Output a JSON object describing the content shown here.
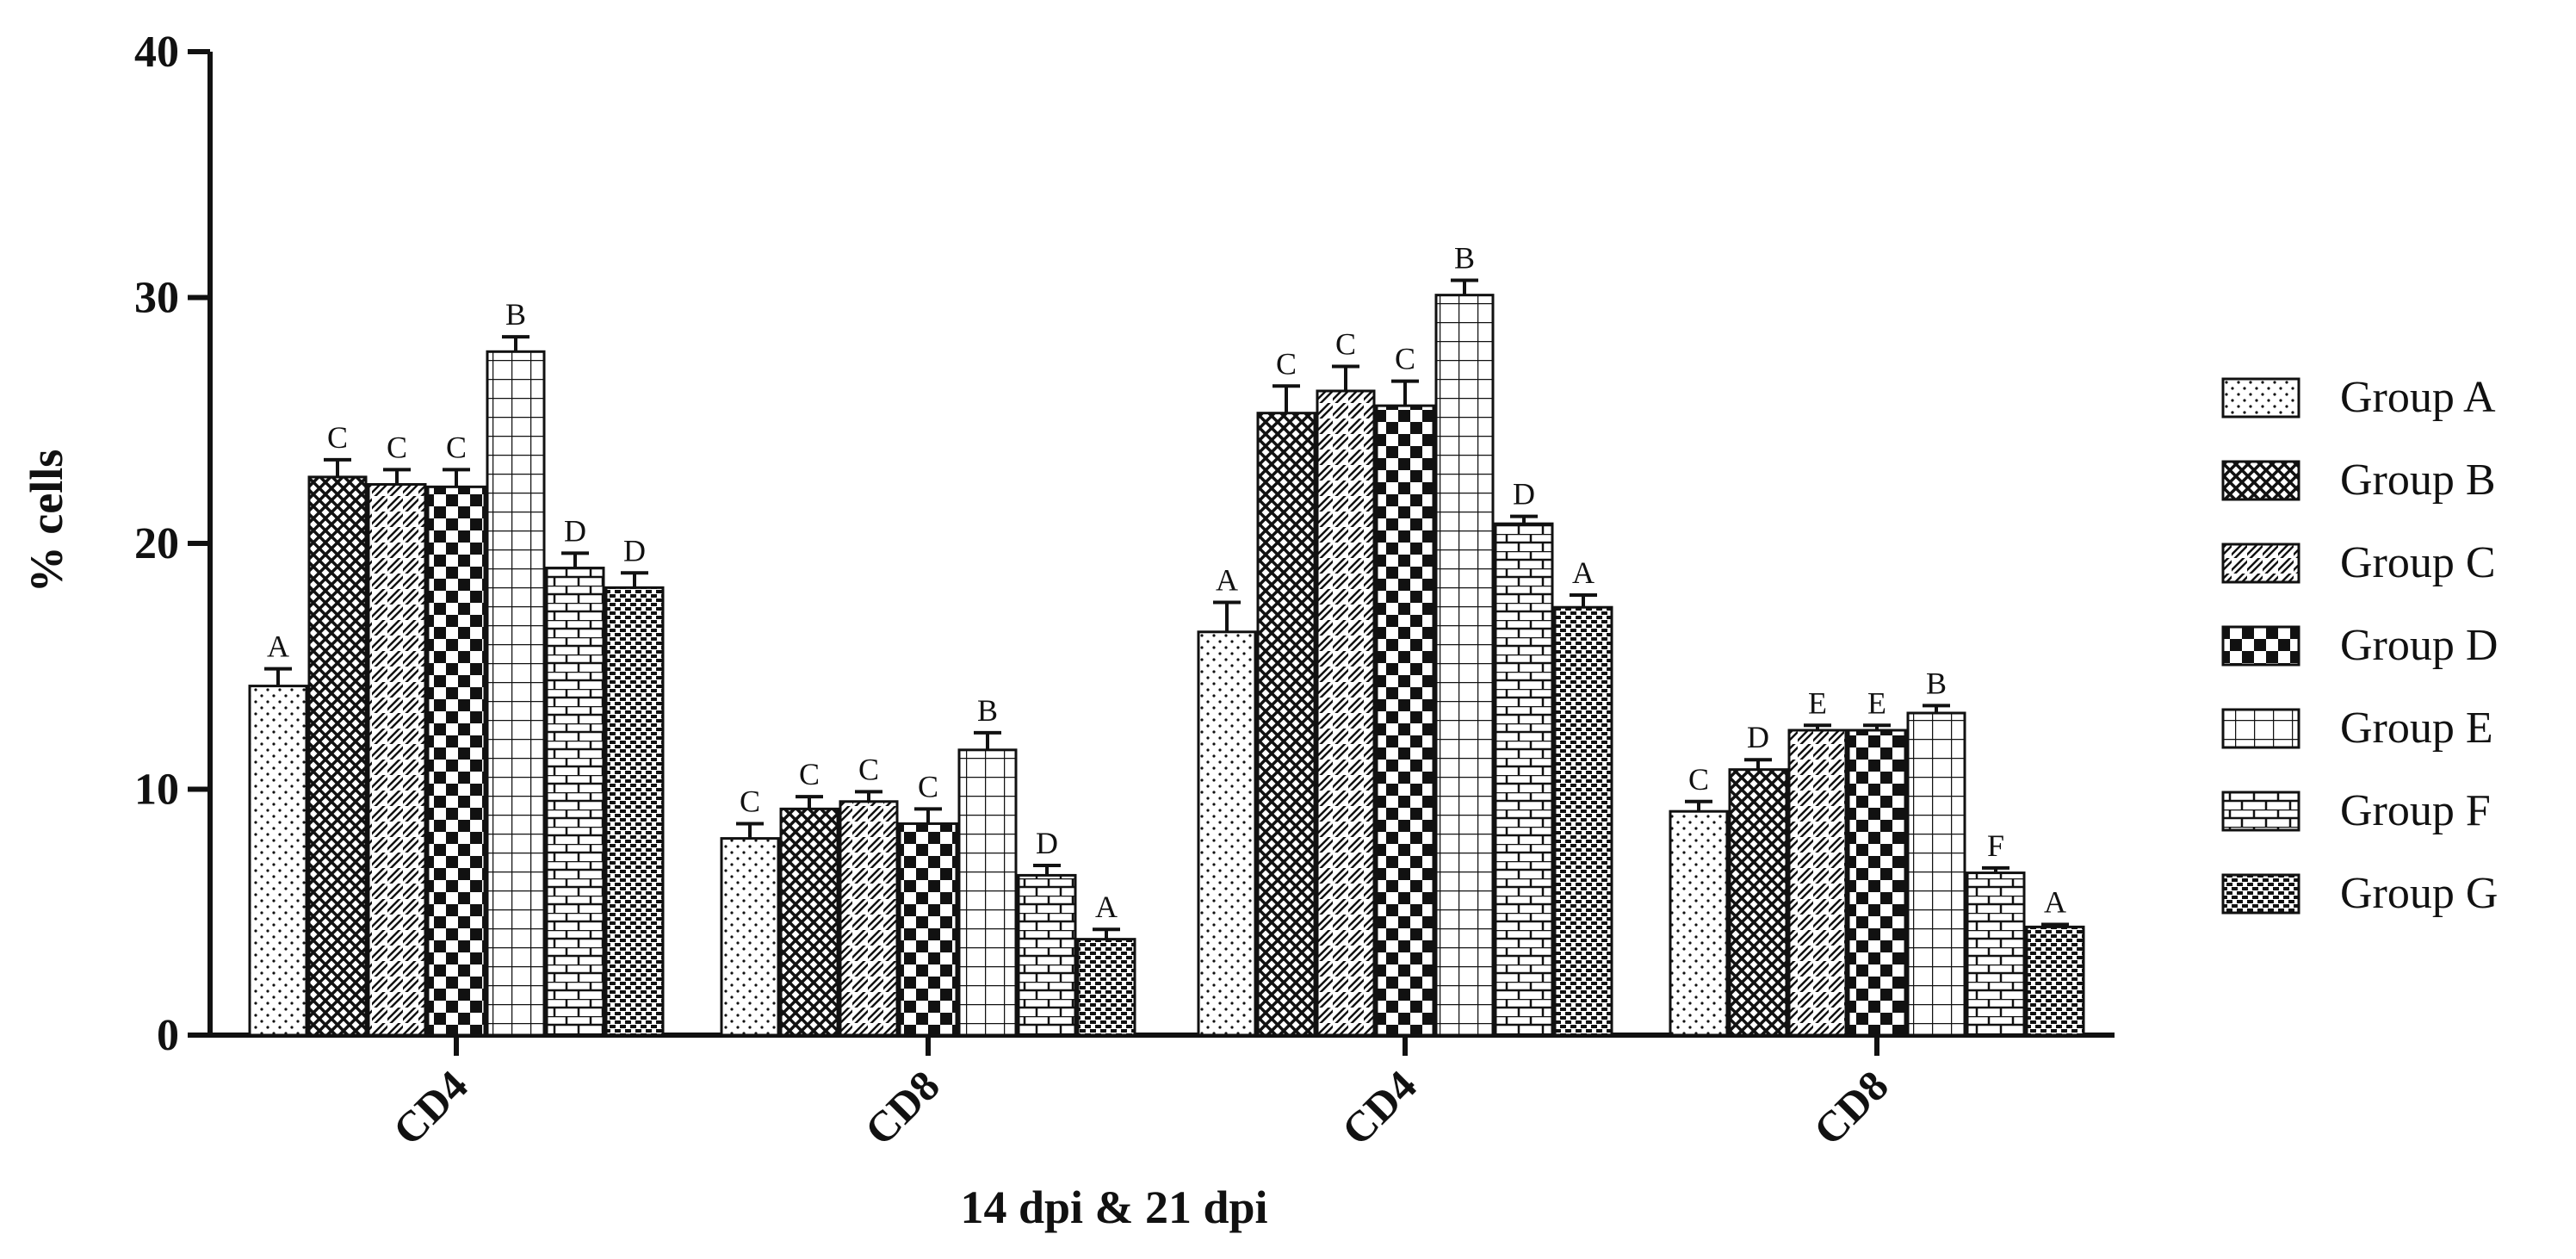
{
  "chart_data": {
    "type": "bar",
    "title": "",
    "xlabel": "14 dpi & 21 dpi",
    "ylabel": "% cells",
    "ylim": [
      0,
      40
    ],
    "yticks": [
      0,
      10,
      20,
      30,
      40
    ],
    "categories": [
      "CD4",
      "CD8",
      "CD4",
      "CD8"
    ],
    "legend_position": "right",
    "series": [
      {
        "name": "Group A",
        "pattern": "dots",
        "values": [
          14.2,
          8.0,
          16.4,
          9.1
        ],
        "errors": [
          0.7,
          0.6,
          1.2,
          0.4
        ],
        "letters": [
          "A",
          "C",
          "A",
          "C"
        ]
      },
      {
        "name": "Group B",
        "pattern": "crosshatch",
        "values": [
          22.7,
          9.2,
          25.3,
          10.8
        ],
        "errors": [
          0.7,
          0.5,
          1.1,
          0.4
        ],
        "letters": [
          "C",
          "C",
          "C",
          "D"
        ]
      },
      {
        "name": "Group C",
        "pattern": "diagonal",
        "values": [
          22.4,
          9.5,
          26.2,
          12.4
        ],
        "errors": [
          0.6,
          0.4,
          1.0,
          0.2
        ],
        "letters": [
          "C",
          "C",
          "C",
          "E"
        ]
      },
      {
        "name": "Group D",
        "pattern": "checker",
        "values": [
          22.3,
          8.6,
          25.6,
          12.4
        ],
        "errors": [
          0.7,
          0.6,
          1.0,
          0.2
        ],
        "letters": [
          "C",
          "C",
          "C",
          "E"
        ]
      },
      {
        "name": "Group E",
        "pattern": "grid",
        "values": [
          27.8,
          11.6,
          30.1,
          13.1
        ],
        "errors": [
          0.6,
          0.7,
          0.6,
          0.3
        ],
        "letters": [
          "B",
          "B",
          "B",
          "B"
        ]
      },
      {
        "name": "Group F",
        "pattern": "brick",
        "values": [
          19.0,
          6.5,
          20.8,
          6.6
        ],
        "errors": [
          0.6,
          0.4,
          0.3,
          0.2
        ],
        "letters": [
          "D",
          "D",
          "D",
          "F"
        ]
      },
      {
        "name": "Group G",
        "pattern": "dense",
        "values": [
          18.2,
          3.9,
          17.4,
          4.4
        ],
        "errors": [
          0.6,
          0.4,
          0.5,
          0.1
        ],
        "letters": [
          "D",
          "A",
          "A",
          "A"
        ]
      }
    ]
  }
}
